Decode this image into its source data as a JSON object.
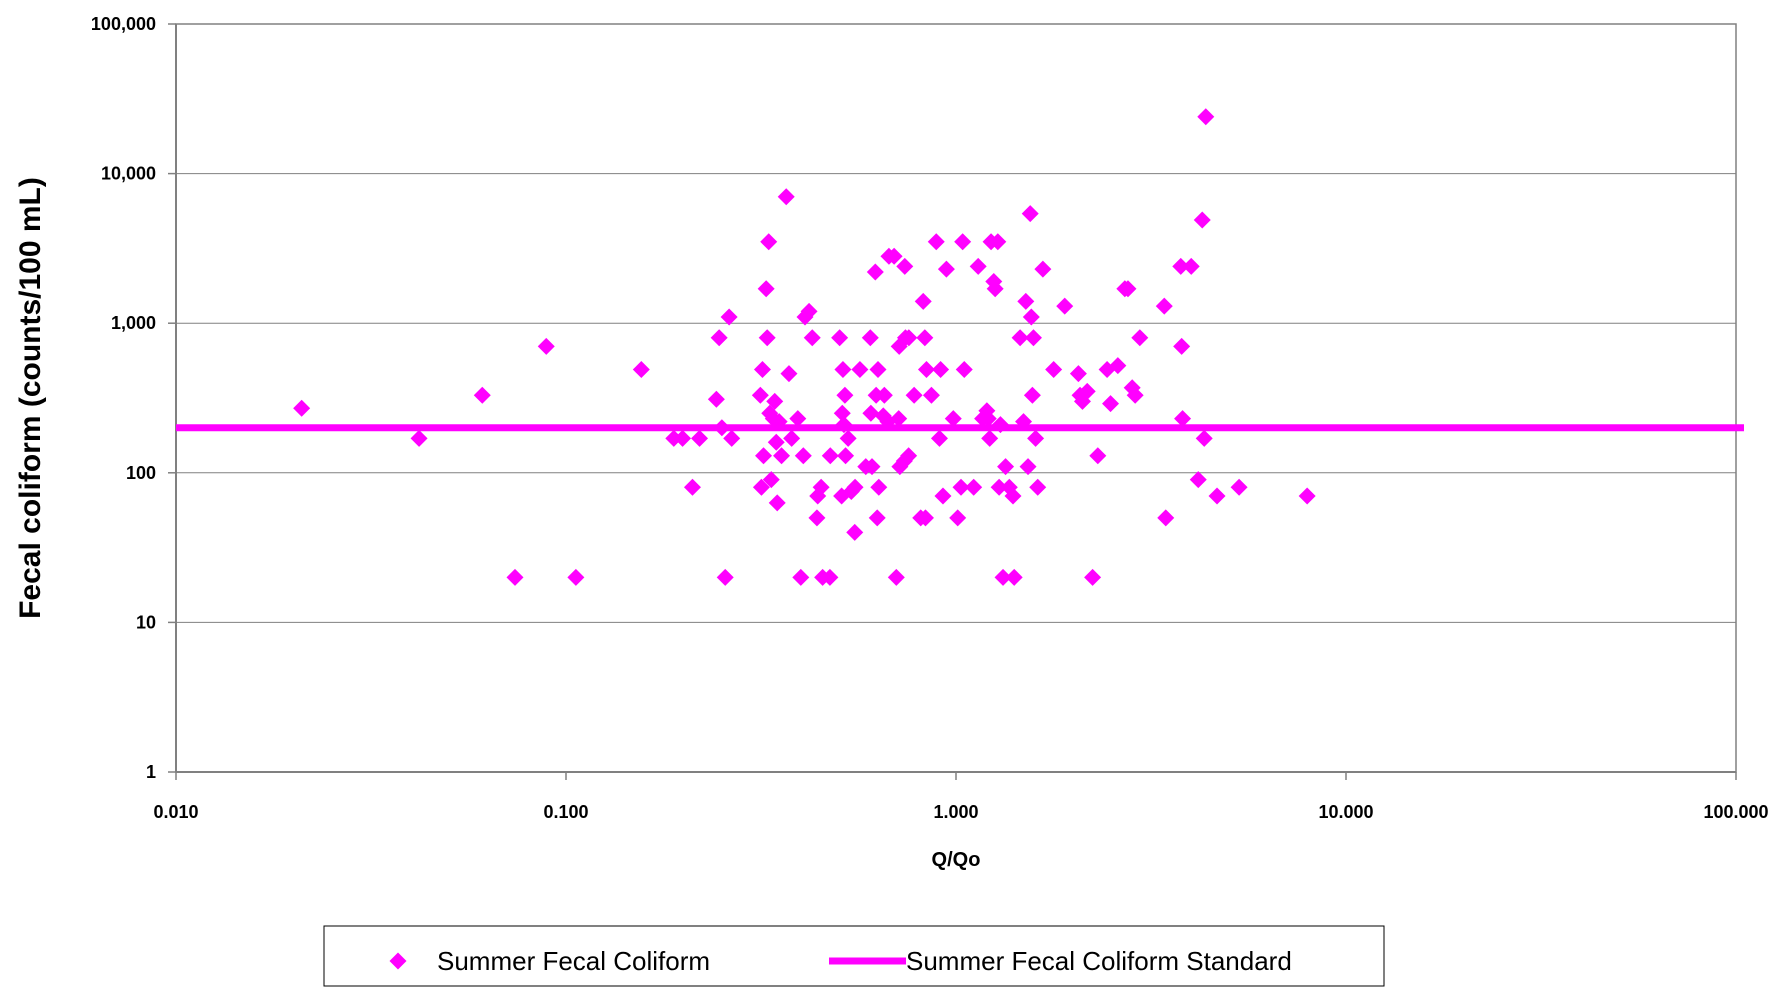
{
  "chart_data": {
    "type": "scatter",
    "x_scale": "log",
    "y_scale": "log",
    "xlabel": "Q/Qo",
    "ylabel": "Fecal coliform (counts/100 mL)",
    "xlim": [
      0.01,
      100
    ],
    "ylim": [
      1,
      100000
    ],
    "x_ticks": [
      "0.010",
      "0.100",
      "1.000",
      "10.000",
      "100.000"
    ],
    "y_ticks": [
      "1",
      "10",
      "100",
      "1,000",
      "10,000",
      "100,000"
    ],
    "grid": "horizontal",
    "legend_position": "bottom",
    "colors": {
      "series": "#ff00ff",
      "grid": "#808080",
      "axis": "#808080"
    },
    "series": [
      {
        "name": "Summer Fecal Coliform",
        "type": "scatter",
        "marker": "diamond",
        "points": [
          [
            0.021,
            270
          ],
          [
            0.042,
            170
          ],
          [
            0.061,
            330
          ],
          [
            0.074,
            20
          ],
          [
            0.089,
            700
          ],
          [
            0.106,
            20
          ],
          [
            0.156,
            490
          ],
          [
            0.189,
            170
          ],
          [
            0.199,
            170
          ],
          [
            0.211,
            80
          ],
          [
            0.22,
            170
          ],
          [
            0.243,
            310
          ],
          [
            0.247,
            800
          ],
          [
            0.251,
            200
          ],
          [
            0.256,
            20
          ],
          [
            0.262,
            1100
          ],
          [
            0.266,
            170
          ],
          [
            0.315,
            330
          ],
          [
            0.317,
            80
          ],
          [
            0.319,
            490
          ],
          [
            0.321,
            130
          ],
          [
            0.326,
            1700
          ],
          [
            0.328,
            800
          ],
          [
            0.331,
            3500
          ],
          [
            0.333,
            250
          ],
          [
            0.336,
            90
          ],
          [
            0.34,
            230
          ],
          [
            0.343,
            300
          ],
          [
            0.346,
            160
          ],
          [
            0.348,
            63
          ],
          [
            0.352,
            220
          ],
          [
            0.357,
            130
          ],
          [
            0.367,
            7000
          ],
          [
            0.373,
            460
          ],
          [
            0.379,
            170
          ],
          [
            0.393,
            230
          ],
          [
            0.4,
            20
          ],
          [
            0.406,
            130
          ],
          [
            0.41,
            1100
          ],
          [
            0.42,
            1200
          ],
          [
            0.428,
            800
          ],
          [
            0.44,
            50
          ],
          [
            0.442,
            70
          ],
          [
            0.451,
            80
          ],
          [
            0.455,
            20
          ],
          [
            0.475,
            20
          ],
          [
            0.476,
            130
          ],
          [
            0.503,
            800
          ],
          [
            0.509,
            70
          ],
          [
            0.511,
            250
          ],
          [
            0.513,
            490
          ],
          [
            0.516,
            210
          ],
          [
            0.519,
            330
          ],
          [
            0.521,
            130
          ],
          [
            0.529,
            170
          ],
          [
            0.539,
            75
          ],
          [
            0.55,
            40
          ],
          [
            0.551,
            80
          ],
          [
            0.567,
            490
          ],
          [
            0.587,
            110
          ],
          [
            0.603,
            800
          ],
          [
            0.605,
            250
          ],
          [
            0.609,
            110
          ],
          [
            0.621,
            2200
          ],
          [
            0.624,
            330
          ],
          [
            0.628,
            50
          ],
          [
            0.631,
            490
          ],
          [
            0.634,
            80
          ],
          [
            0.651,
            240
          ],
          [
            0.655,
            330
          ],
          [
            0.669,
            220
          ],
          [
            0.673,
            2800
          ],
          [
            0.694,
            2800
          ],
          [
            0.703,
            20
          ],
          [
            0.713,
            230
          ],
          [
            0.715,
            700
          ],
          [
            0.718,
            110
          ],
          [
            0.737,
            120
          ],
          [
            0.739,
            2400
          ],
          [
            0.742,
            800
          ],
          [
            0.756,
            130
          ],
          [
            0.757,
            800
          ],
          [
            0.781,
            330
          ],
          [
            0.812,
            50
          ],
          [
            0.824,
            1400
          ],
          [
            0.832,
            800
          ],
          [
            0.835,
            50
          ],
          [
            0.84,
            490
          ],
          [
            0.865,
            330
          ],
          [
            0.89,
            3500
          ],
          [
            0.907,
            170
          ],
          [
            0.913,
            490
          ],
          [
            0.926,
            70
          ],
          [
            0.945,
            2300
          ],
          [
            0.984,
            230
          ],
          [
            1.01,
            50
          ],
          [
            1.03,
            80
          ],
          [
            1.04,
            3500
          ],
          [
            1.05,
            490
          ],
          [
            1.11,
            80
          ],
          [
            1.14,
            2400
          ],
          [
            1.17,
            230
          ],
          [
            1.2,
            260
          ],
          [
            1.21,
            230
          ],
          [
            1.22,
            170
          ],
          [
            1.23,
            3500
          ],
          [
            1.25,
            1900
          ],
          [
            1.26,
            1700
          ],
          [
            1.28,
            3500
          ],
          [
            1.29,
            80
          ],
          [
            1.3,
            210
          ],
          [
            1.32,
            20
          ],
          [
            1.34,
            110
          ],
          [
            1.37,
            80
          ],
          [
            1.4,
            70
          ],
          [
            1.41,
            20
          ],
          [
            1.46,
            800
          ],
          [
            1.49,
            220
          ],
          [
            1.51,
            1400
          ],
          [
            1.53,
            110
          ],
          [
            1.55,
            5400
          ],
          [
            1.56,
            1100
          ],
          [
            1.57,
            330
          ],
          [
            1.58,
            800
          ],
          [
            1.6,
            170
          ],
          [
            1.62,
            80
          ],
          [
            1.67,
            2300
          ],
          [
            1.78,
            490
          ],
          [
            1.9,
            1300
          ],
          [
            2.06,
            460
          ],
          [
            2.08,
            330
          ],
          [
            2.11,
            300
          ],
          [
            2.17,
            350
          ],
          [
            2.24,
            20
          ],
          [
            2.31,
            130
          ],
          [
            2.44,
            490
          ],
          [
            2.49,
            290
          ],
          [
            2.6,
            520
          ],
          [
            2.71,
            1700
          ],
          [
            2.76,
            1700
          ],
          [
            2.83,
            370
          ],
          [
            2.88,
            330
          ],
          [
            2.96,
            800
          ],
          [
            3.42,
            1300
          ],
          [
            3.45,
            50
          ],
          [
            3.77,
            2400
          ],
          [
            3.79,
            700
          ],
          [
            3.81,
            230
          ],
          [
            4.01,
            2400
          ],
          [
            4.18,
            90
          ],
          [
            4.28,
            4900
          ],
          [
            4.33,
            170
          ],
          [
            4.37,
            24000
          ],
          [
            4.67,
            70
          ],
          [
            5.32,
            80
          ],
          [
            7.95,
            70
          ]
        ]
      },
      {
        "name": "Summer Fecal Coliform Standard",
        "type": "line",
        "y": 200
      }
    ]
  }
}
